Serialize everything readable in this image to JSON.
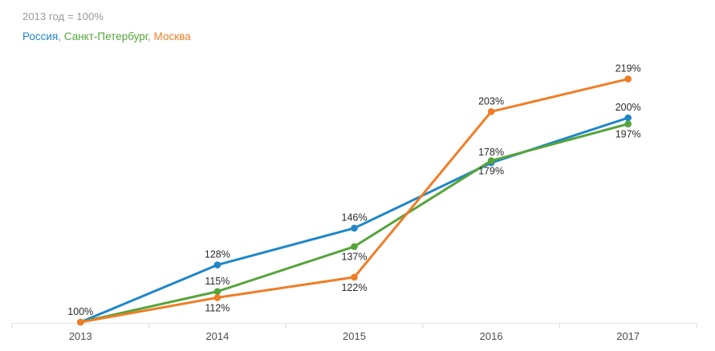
{
  "header": {
    "subtitle": "2013 год = 100%"
  },
  "legend": {
    "separator": ", ",
    "items": [
      {
        "label": "Россия",
        "color": "#1f86c8"
      },
      {
        "label": "Санкт-Петербург",
        "color": "#55a43a"
      },
      {
        "label": "Москва",
        "color": "#ef7d26"
      }
    ]
  },
  "chart_data": {
    "type": "line",
    "title": "",
    "subtitle_note": "2013 год = 100%",
    "xlabel": "",
    "ylabel": "",
    "ylim": [
      100,
      230
    ],
    "grid": false,
    "legend_position": "top-left",
    "categories": [
      "2013",
      "2014",
      "2015",
      "2016",
      "2017"
    ],
    "series": [
      {
        "name": "Россия",
        "color": "#1f86c8",
        "values": [
          100,
          128,
          146,
          178,
          200
        ],
        "labels": [
          null,
          "128%",
          "146%",
          "178%",
          "200%"
        ],
        "label_positions": [
          null,
          "above",
          "above",
          "above",
          "above"
        ]
      },
      {
        "name": "Санкт-Петербург",
        "color": "#55a43a",
        "values": [
          100,
          115,
          137,
          179,
          197
        ],
        "labels": [
          null,
          "115%",
          "137%",
          "179%",
          "197%"
        ],
        "label_positions": [
          null,
          "above",
          "below",
          "below",
          "below"
        ]
      },
      {
        "name": "Москва",
        "color": "#ef7d26",
        "values": [
          100,
          112,
          122,
          203,
          219
        ],
        "labels": [
          "100%",
          "112%",
          "122%",
          "203%",
          "219%"
        ],
        "label_positions": [
          "above",
          "below",
          "below",
          "above",
          "above"
        ]
      }
    ],
    "styles": {
      "point_label_color": "#2a2a2a",
      "axis_label_color": "#4d4d4d",
      "axis_line_color": "#e3e3e3",
      "tick_color": "#d5d5d5"
    }
  }
}
